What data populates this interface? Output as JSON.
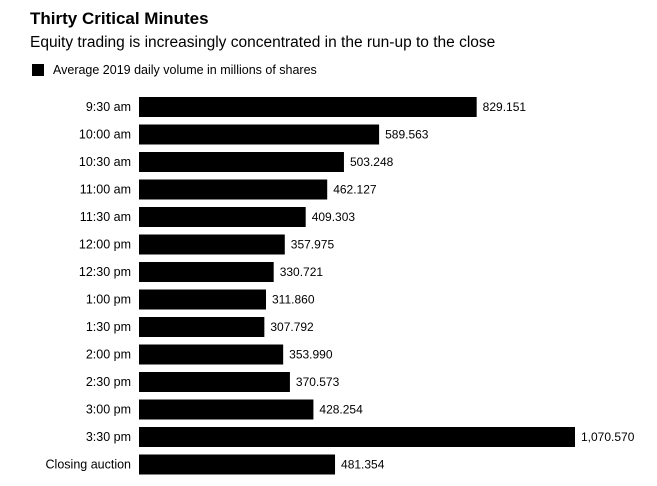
{
  "chart_data": {
    "type": "bar",
    "orientation": "horizontal",
    "title": "Thirty Critical Minutes",
    "subtitle": "Equity trading is increasingly concentrated in the run-up to the close",
    "legend": {
      "position": "top-left"
    },
    "series": [
      {
        "name": "Average 2019 daily volume in millions of shares",
        "color": "#000000",
        "values": [
          829.151,
          589.563,
          503.248,
          462.127,
          409.303,
          357.975,
          330.721,
          311.86,
          307.792,
          353.99,
          370.573,
          428.254,
          1070.57,
          481.354
        ],
        "value_labels": [
          "829.151",
          "589.563",
          "503.248",
          "462.127",
          "409.303",
          "357.975",
          "330.721",
          "311.860",
          "307.792",
          "353.990",
          "370.573",
          "428.254",
          "1,070.570",
          "481.354"
        ]
      }
    ],
    "categories": [
      "9:30 am",
      "10:00 am",
      "10:30 am",
      "11:00 am",
      "11:30 am",
      "12:00 pm",
      "12:30 pm",
      "1:00 pm",
      "1:30 pm",
      "2:00 pm",
      "2:30 pm",
      "3:00 pm",
      "3:30 pm",
      "Closing auction"
    ],
    "xlim": [
      0,
      1100
    ],
    "grid": false
  }
}
